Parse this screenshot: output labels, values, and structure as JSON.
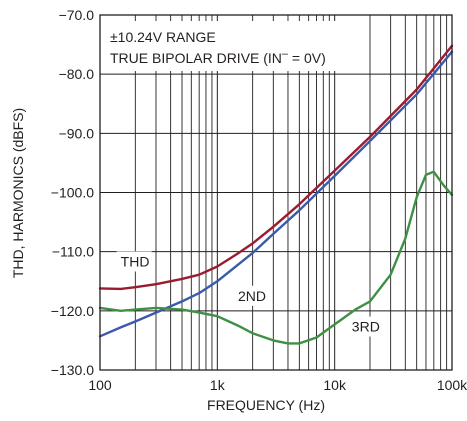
{
  "chart_data": {
    "type": "line",
    "title": "",
    "xlabel": "FREQUENCY (Hz)",
    "ylabel": "THD, HARMONICS (dBFS)",
    "x_scale": "log",
    "xlim": [
      100,
      100000
    ],
    "ylim": [
      -130,
      -70
    ],
    "grid": true,
    "x_ticks": [
      {
        "value": 100,
        "label": "100"
      },
      {
        "value": 1000,
        "label": "1k"
      },
      {
        "value": 10000,
        "label": "10k"
      },
      {
        "value": 100000,
        "label": "100k"
      }
    ],
    "y_ticks": [
      {
        "value": -70,
        "label": "−70.0"
      },
      {
        "value": -80,
        "label": "−80.0"
      },
      {
        "value": -90,
        "label": "−90.0"
      },
      {
        "value": -100,
        "label": "−100.0"
      },
      {
        "value": -110,
        "label": "−110.0"
      },
      {
        "value": -120,
        "label": "−120.0"
      },
      {
        "value": -130,
        "label": "−130.0"
      }
    ],
    "annotations": {
      "line1": "±10.24V RANGE",
      "line2_prefix": "TRUE BIPOLAR DRIVE (IN",
      "line2_sup": "–",
      "line2_suffix": " = 0V)"
    },
    "series": [
      {
        "name": "THD",
        "color": "#9b1b30",
        "x": [
          100,
          150,
          200,
          300,
          500,
          700,
          1000,
          1500,
          2000,
          3000,
          5000,
          10000,
          20000,
          50000,
          100000
        ],
        "y": [
          -116.2,
          -116.3,
          -116.0,
          -115.5,
          -114.6,
          -113.9,
          -112.5,
          -110.3,
          -108.6,
          -105.8,
          -102.0,
          -96.3,
          -90.6,
          -82.6,
          -75.2
        ]
      },
      {
        "name": "2ND",
        "color": "#3a5ba9",
        "x": [
          100,
          150,
          200,
          300,
          500,
          700,
          1000,
          1500,
          2000,
          3000,
          5000,
          10000,
          20000,
          50000,
          100000
        ],
        "y": [
          -124.3,
          -122.8,
          -121.8,
          -120.3,
          -118.4,
          -117.0,
          -115.0,
          -112.2,
          -110.2,
          -107.0,
          -103.0,
          -97.2,
          -91.3,
          -83.4,
          -76.2
        ]
      },
      {
        "name": "3RD",
        "color": "#3f8f45",
        "x": [
          100,
          150,
          200,
          300,
          500,
          700,
          1000,
          1500,
          2000,
          3000,
          4000,
          5000,
          7000,
          10000,
          15000,
          20000,
          30000,
          40000,
          50000,
          60000,
          70000,
          85000,
          100000
        ],
        "y": [
          -119.5,
          -120.0,
          -119.8,
          -119.5,
          -119.8,
          -120.3,
          -120.9,
          -122.5,
          -123.8,
          -125.0,
          -125.5,
          -125.5,
          -124.5,
          -122.3,
          -119.8,
          -118.4,
          -113.9,
          -107.8,
          -100.8,
          -97.0,
          -96.5,
          -98.8,
          -100.4
        ]
      }
    ],
    "series_labels": [
      {
        "text": "THD",
        "x": 150,
        "y": -112.5
      },
      {
        "text": "2ND",
        "x": 1500,
        "y": -118.3
      },
      {
        "text": "3RD",
        "x": 14000,
        "y": -123.5
      }
    ]
  }
}
